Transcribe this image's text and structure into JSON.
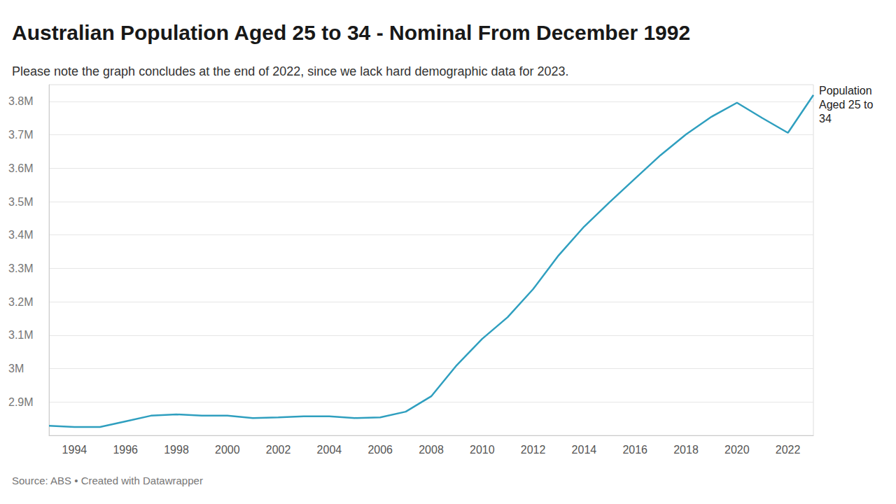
{
  "chart_data": {
    "type": "line",
    "title": "Australian Population Aged 25 to 34 - Nominal From December 1992",
    "subtitle": "Please note the graph concludes at the end of 2022, since we lack hard demographic data for 2023.",
    "source": "Source: ABS • Created with Datawrapper",
    "x": [
      1993,
      1994,
      1995,
      1996,
      1997,
      1998,
      1999,
      2000,
      2001,
      2002,
      2003,
      2004,
      2005,
      2006,
      2007,
      2008,
      2009,
      2010,
      2011,
      2012,
      2013,
      2014,
      2015,
      2016,
      2017,
      2018,
      2019,
      2020,
      2021,
      2022,
      2023
    ],
    "series": [
      {
        "name": "Population Aged 25 to 34",
        "color": "#2f9fbf",
        "values": [
          2829000,
          2825000,
          2825000,
          2842000,
          2859000,
          2863000,
          2859000,
          2859000,
          2852000,
          2854000,
          2857000,
          2857000,
          2852000,
          2854000,
          2871000,
          2917000,
          3010000,
          3089000,
          3154000,
          3238000,
          3339000,
          3425000,
          3498000,
          3569000,
          3639000,
          3701000,
          3754000,
          3796000,
          3750000,
          3706000,
          3819000
        ]
      }
    ],
    "xlim": [
      1993,
      2023
    ],
    "xticks": [
      1994,
      1996,
      1998,
      2000,
      2002,
      2004,
      2006,
      2008,
      2010,
      2012,
      2014,
      2016,
      2018,
      2020,
      2022
    ],
    "ylim": [
      2800000,
      3850000
    ],
    "yticks": [
      {
        "value": 2900000,
        "label": "2.9M"
      },
      {
        "value": 3000000,
        "label": "3M"
      },
      {
        "value": 3100000,
        "label": "3.1M"
      },
      {
        "value": 3200000,
        "label": "3.2M"
      },
      {
        "value": 3300000,
        "label": "3.3M"
      },
      {
        "value": 3400000,
        "label": "3.4M"
      },
      {
        "value": 3500000,
        "label": "3.5M"
      },
      {
        "value": 3600000,
        "label": "3.6M"
      },
      {
        "value": 3700000,
        "label": "3.7M"
      },
      {
        "value": 3800000,
        "label": "3.8M"
      }
    ],
    "grid": true
  }
}
